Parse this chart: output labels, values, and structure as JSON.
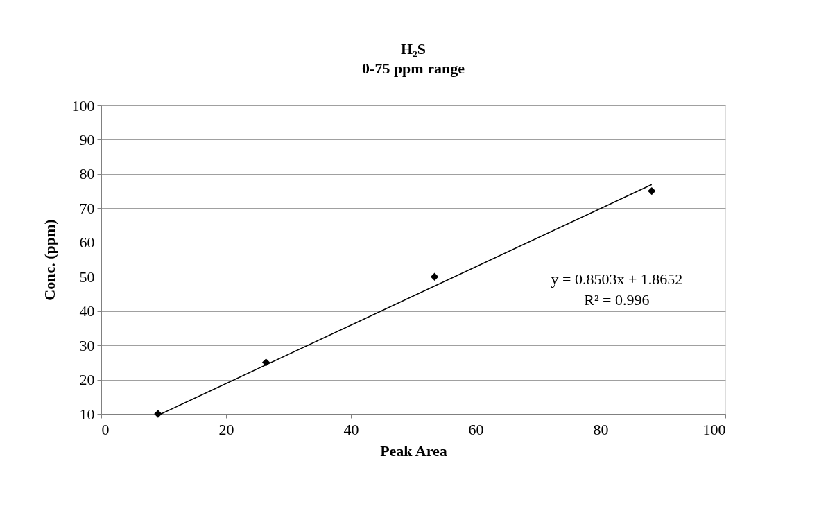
{
  "chart_data": {
    "type": "scatter",
    "title": [
      "H₂S",
      "0-75 ppm range"
    ],
    "xlabel": "Peak Area",
    "ylabel": "Conc. (ppm)",
    "xlim": [
      0,
      100
    ],
    "xticks": [
      0,
      20,
      40,
      60,
      80,
      100
    ],
    "ylim": [
      10,
      100
    ],
    "yticks": [
      10,
      20,
      30,
      40,
      50,
      60,
      70,
      80,
      90,
      100
    ],
    "grid": "y",
    "marker": "diamond",
    "series": [
      {
        "color": "#000000",
        "x": [
          9.1,
          26.4,
          53.4,
          88.2
        ],
        "values": [
          10,
          25,
          50,
          75
        ]
      },
      {
        "type": "line",
        "color": "#000000",
        "line_style": "solid",
        "marker": "none",
        "x": [
          9.6,
          88.2
        ],
        "values": [
          10.0,
          76.9
        ]
      }
    ],
    "annotations": [
      "y = 0.8503x + 1.8652",
      "R² = 0.996"
    ]
  }
}
